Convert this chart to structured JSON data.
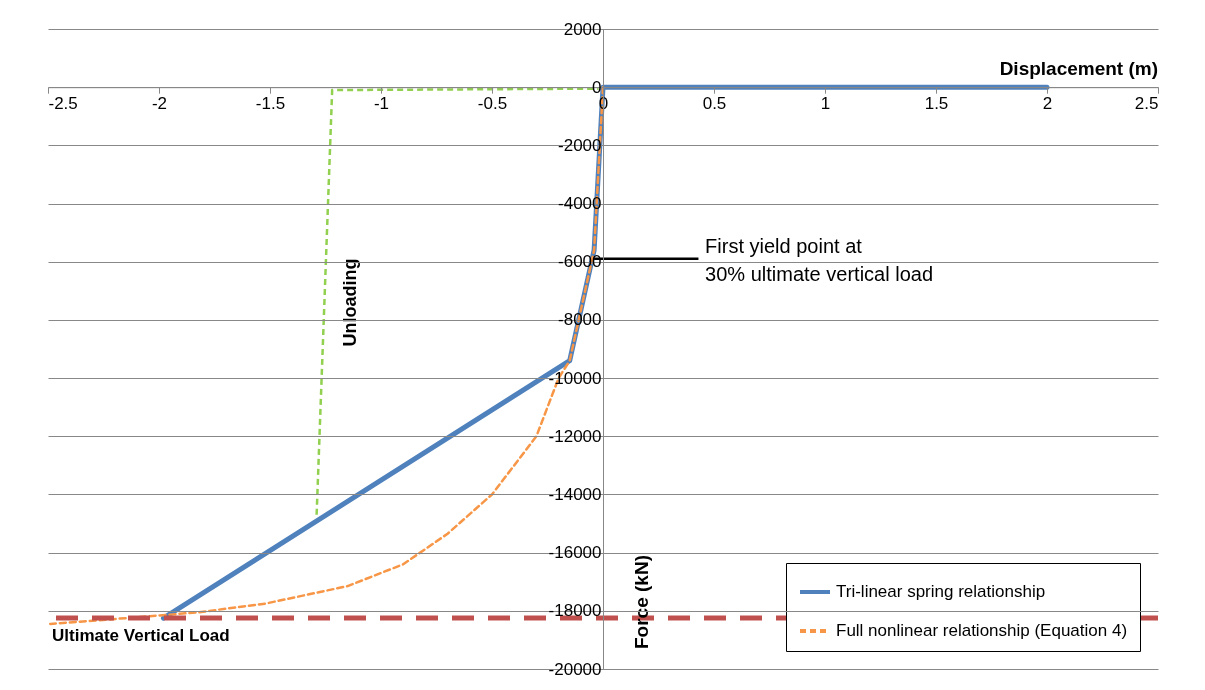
{
  "chart_data": {
    "type": "line",
    "xlabel": "Displacement (m)",
    "ylabel": "Force (kN)",
    "xlim": [
      -2.5,
      2.5
    ],
    "xticks": [
      -2.5,
      -2,
      -1.5,
      -1,
      -0.5,
      0,
      0.5,
      1,
      1.5,
      2,
      2.5
    ],
    "ylim": [
      -20000,
      2000
    ],
    "yticks": [
      -20000,
      -18000,
      -16000,
      -14000,
      -12000,
      -10000,
      -8000,
      -6000,
      -4000,
      -2000,
      0,
      2000
    ],
    "grid": "y",
    "legend": "bottom right",
    "marker": "none",
    "series": [
      {
        "name": "Tri-linear spring relationship",
        "color": "#4f81bd",
        "line_style": "solid",
        "x": [
          2,
          0,
          -0.04,
          -0.15,
          -1.98
        ],
        "values": [
          0,
          0,
          -5600,
          -9400,
          -18250
        ]
      },
      {
        "name": "Full nonlinear relationship (Equation 4)",
        "color": "#f79646",
        "line_style": "dashed",
        "x": [
          0,
          -0.04,
          -0.15,
          -0.2,
          -0.3,
          -0.5,
          -0.7,
          -0.9,
          -1.15,
          -1.52,
          -1.82,
          -2.23,
          -2.49
        ],
        "values": [
          0,
          -5600,
          -9400,
          -10000,
          -12000,
          -14000,
          -15350,
          -16400,
          -17150,
          -17750,
          -18050,
          -18300,
          -18450
        ]
      },
      {
        "color": "#92d050",
        "line_style": "dashed",
        "x": [
          -1.29,
          -1.22,
          -0.02
        ],
        "values": [
          -14700,
          -100,
          -50
        ]
      }
    ],
    "ref_lines": [
      {
        "axis": "y",
        "value": -18250,
        "label": "Ultimate Vertical Load",
        "color": "#c0504d",
        "line_style": "dashed"
      }
    ],
    "annotations": [
      {
        "text": "First yield point at 30% ultimate vertical load",
        "x": -0.04,
        "y": -5900
      },
      "Unloading"
    ]
  }
}
